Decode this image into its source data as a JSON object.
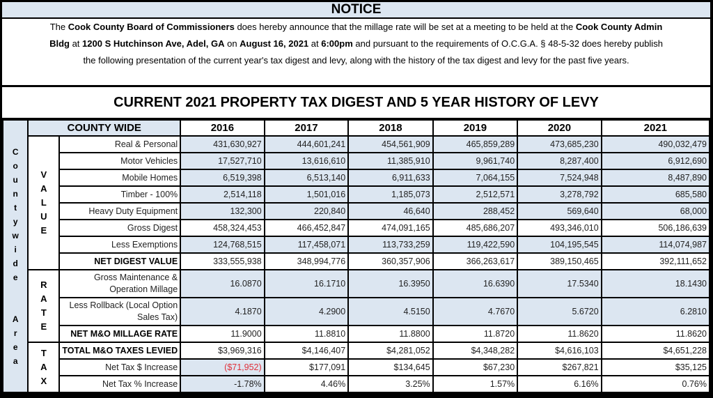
{
  "notice": {
    "heading": "NOTICE",
    "line1": [
      {
        "t": "The ",
        "b": false
      },
      {
        "t": "Cook County Board of Commissioners",
        "b": true
      },
      {
        "t": " does hereby announce that the millage rate will be set at a meeting to be held at the ",
        "b": false
      },
      {
        "t": "Cook County Admin Bldg",
        "b": true
      },
      {
        "t": " at ",
        "b": false
      },
      {
        "t": "1200 S Hutchinson Ave, Adel, GA",
        "b": true
      },
      {
        "t": " on ",
        "b": false
      },
      {
        "t": "August 16, 2021",
        "b": true
      },
      {
        "t": " at ",
        "b": false
      },
      {
        "t": "6:00pm",
        "b": true
      },
      {
        "t": " and pursuant to the requirements of O.C.G.A. § 48-5-32 does hereby publish the following presentation of the current year's tax digest and levy, along with the history of the tax digest and levy for the past five years.",
        "b": false
      }
    ]
  },
  "title": "CURRENT 2021 PROPERTY TAX DIGEST AND 5 YEAR HISTORY OF LEVY",
  "table": {
    "side_label": "Countywide Area",
    "header_label": "COUNTY WIDE",
    "years": [
      "2016",
      "2017",
      "2018",
      "2019",
      "2020",
      "2021"
    ],
    "groups": [
      {
        "label": "VALUE",
        "rows": [
          {
            "label": "Real & Personal",
            "bold": false,
            "shade": "all",
            "values": [
              "431,630,927",
              "444,601,241",
              "454,561,909",
              "465,859,289",
              "473,685,230",
              "490,032,479"
            ]
          },
          {
            "label": "Motor Vehicles",
            "bold": false,
            "shade": "all",
            "values": [
              "17,527,710",
              "13,616,610",
              "11,385,910",
              "9,961,740",
              "8,287,400",
              "6,912,690"
            ]
          },
          {
            "label": "Mobile Homes",
            "bold": false,
            "shade": "all",
            "values": [
              "6,519,398",
              "6,513,140",
              "6,911,633",
              "7,064,155",
              "7,524,948",
              "8,487,890"
            ]
          },
          {
            "label": "Timber - 100%",
            "bold": false,
            "shade": "all",
            "values": [
              "2,514,118",
              "1,501,016",
              "1,185,073",
              "2,512,571",
              "3,278,792",
              "685,580"
            ]
          },
          {
            "label": "Heavy Duty Equipment",
            "bold": false,
            "shade": "all",
            "values": [
              "132,300",
              "220,840",
              "46,640",
              "288,452",
              "569,640",
              "68,000"
            ]
          },
          {
            "label": "Gross Digest",
            "bold": false,
            "shade": "none",
            "values": [
              "458,324,453",
              "466,452,847",
              "474,091,165",
              "485,686,207",
              "493,346,010",
              "506,186,639"
            ]
          },
          {
            "label": "Less Exemptions",
            "bold": false,
            "shade": "all",
            "values": [
              "124,768,515",
              "117,458,071",
              "113,733,259",
              "119,422,590",
              "104,195,545",
              "114,074,987"
            ]
          },
          {
            "label": "NET DIGEST VALUE",
            "bold": true,
            "shade": "none",
            "values": [
              "333,555,938",
              "348,994,776",
              "360,357,906",
              "366,263,617",
              "389,150,465",
              "392,111,652"
            ]
          }
        ]
      },
      {
        "label": "RATE",
        "rows": [
          {
            "label": "Gross Maintenance & Operation Millage",
            "bold": false,
            "shade": "all",
            "tall": true,
            "values": [
              "16.0870",
              "16.1710",
              "16.3950",
              "16.6390",
              "17.5340",
              "18.1430"
            ]
          },
          {
            "label": "Less Rollback (Local Option Sales Tax)",
            "bold": false,
            "shade": "all",
            "tall": true,
            "values": [
              "4.1870",
              "4.2900",
              "4.5150",
              "4.7670",
              "5.6720",
              "6.2810"
            ]
          },
          {
            "label": "NET M&O MILLAGE RATE",
            "bold": true,
            "shade": "none",
            "values": [
              "11.9000",
              "11.8810",
              "11.8800",
              "11.8720",
              "11.8620",
              "11.8620"
            ]
          }
        ]
      },
      {
        "label": "TAX",
        "rows": [
          {
            "label": "TOTAL M&O TAXES LEVIED",
            "bold": true,
            "shade": "none",
            "values": [
              "$3,969,316",
              "$4,146,407",
              "$4,281,052",
              "$4,348,282",
              "$4,616,103",
              "$4,651,228"
            ]
          },
          {
            "label": "Net Tax $ Increase",
            "bold": false,
            "shade": "first",
            "values": [
              "($71,952)",
              "$177,091",
              "$134,645",
              "$67,230",
              "$267,821",
              "$35,125"
            ]
          },
          {
            "label": "Net Tax % Increase",
            "bold": false,
            "shade": "first",
            "values": [
              "-1.78%",
              "4.46%",
              "3.25%",
              "1.57%",
              "6.16%",
              "0.76%"
            ]
          }
        ]
      }
    ]
  },
  "colors": {
    "header_fill": "#dce6f1",
    "negative": "#e0303a"
  }
}
